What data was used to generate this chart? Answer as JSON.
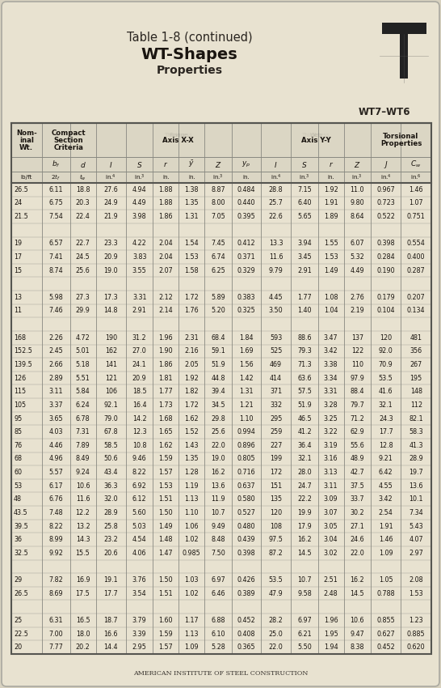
{
  "title1": "Table 1-8 (continued)",
  "title2": "WT-Shapes",
  "title3": "Properties",
  "wt_label": "WT7–WT6",
  "footer": "American Institute of Steel Construction",
  "bg_color": "#d8d2c0",
  "page_color": "#e8e2d0",
  "table_bg": "#e8e2d0",
  "header_bg": "#ddd8c5",
  "rows": [
    [
      "26.5",
      "6.11",
      "18.8",
      "27.6",
      "4.94",
      "1.88",
      "1.38",
      "8.87",
      "0.484",
      "28.8",
      "7.15",
      "1.92",
      "11.0",
      "0.967",
      "1.46"
    ],
    [
      "24",
      "6.75",
      "20.3",
      "24.9",
      "4.49",
      "1.88",
      "1.35",
      "8.00",
      "0.440",
      "25.7",
      "6.40",
      "1.91",
      "9.80",
      "0.723",
      "1.07"
    ],
    [
      "21.5",
      "7.54",
      "22.4",
      "21.9",
      "3.98",
      "1.86",
      "1.31",
      "7.05",
      "0.395",
      "22.6",
      "5.65",
      "1.89",
      "8.64",
      "0.522",
      "0.751"
    ],
    [
      "",
      "",
      "",
      "",
      "",
      "",
      "",
      "",
      "",
      "",
      "",
      "",
      "",
      "",
      ""
    ],
    [
      "19",
      "6.57",
      "22.7",
      "23.3",
      "4.22",
      "2.04",
      "1.54",
      "7.45",
      "0.412",
      "13.3",
      "3.94",
      "1.55",
      "6.07",
      "0.398",
      "0.554"
    ],
    [
      "17",
      "7.41",
      "24.5",
      "20.9",
      "3.83",
      "2.04",
      "1.53",
      "6.74",
      "0.371",
      "11.6",
      "3.45",
      "1.53",
      "5.32",
      "0.284",
      "0.400"
    ],
    [
      "15",
      "8.74",
      "25.6",
      "19.0",
      "3.55",
      "2.07",
      "1.58",
      "6.25",
      "0.329",
      "9.79",
      "2.91",
      "1.49",
      "4.49",
      "0.190",
      "0.287"
    ],
    [
      "",
      "",
      "",
      "",
      "",
      "",
      "",
      "",
      "",
      "",
      "",
      "",
      "",
      "",
      ""
    ],
    [
      "13",
      "5.98",
      "27.3",
      "17.3",
      "3.31",
      "2.12",
      "1.72",
      "5.89",
      "0.383",
      "4.45",
      "1.77",
      "1.08",
      "2.76",
      "0.179",
      "0.207"
    ],
    [
      "11",
      "7.46",
      "29.9",
      "14.8",
      "2.91",
      "2.14",
      "1.76",
      "5.20",
      "0.325",
      "3.50",
      "1.40",
      "1.04",
      "2.19",
      "0.104",
      "0.134"
    ],
    [
      "",
      "",
      "",
      "",
      "",
      "",
      "",
      "",
      "",
      "",
      "",
      "",
      "",
      "",
      ""
    ],
    [
      "168",
      "2.26",
      "4.72",
      "190",
      "31.2",
      "1.96",
      "2.31",
      "68.4",
      "1.84",
      "593",
      "88.6",
      "3.47",
      "137",
      "120",
      "481"
    ],
    [
      "152.5",
      "2.45",
      "5.01",
      "162",
      "27.0",
      "1.90",
      "2.16",
      "59.1",
      "1.69",
      "525",
      "79.3",
      "3.42",
      "122",
      "92.0",
      "356"
    ],
    [
      "139.5",
      "2.66",
      "5.18",
      "141",
      "24.1",
      "1.86",
      "2.05",
      "51.9",
      "1.56",
      "469",
      "71.3",
      "3.38",
      "110",
      "70.9",
      "267"
    ],
    [
      "126",
      "2.89",
      "5.51",
      "121",
      "20.9",
      "1.81",
      "1.92",
      "44.8",
      "1.42",
      "414",
      "63.6",
      "3.34",
      "97.9",
      "53.5",
      "195"
    ],
    [
      "115",
      "3.11",
      "5.84",
      "106",
      "18.5",
      "1.77",
      "1.82",
      "39.4",
      "1.31",
      "371",
      "57.5",
      "3.31",
      "88.4",
      "41.6",
      "148"
    ],
    [
      "105",
      "3.37",
      "6.24",
      "92.1",
      "16.4",
      "1.73",
      "1.72",
      "34.5",
      "1.21",
      "332",
      "51.9",
      "3.28",
      "79.7",
      "32.1",
      "112"
    ],
    [
      "95",
      "3.65",
      "6.78",
      "79.0",
      "14.2",
      "1.68",
      "1.62",
      "29.8",
      "1.10",
      "295",
      "46.5",
      "3.25",
      "71.2",
      "24.3",
      "82.1"
    ],
    [
      "85",
      "4.03",
      "7.31",
      "67.8",
      "12.3",
      "1.65",
      "1.52",
      "25.6",
      "0.994",
      "259",
      "41.2",
      "3.22",
      "62.9",
      "17.7",
      "58.3"
    ],
    [
      "76",
      "4.46",
      "7.89",
      "58.5",
      "10.8",
      "1.62",
      "1.43",
      "22.0",
      "0.896",
      "227",
      "36.4",
      "3.19",
      "55.6",
      "12.8",
      "41.3"
    ],
    [
      "68",
      "4.96",
      "8.49",
      "50.6",
      "9.46",
      "1.59",
      "1.35",
      "19.0",
      "0.805",
      "199",
      "32.1",
      "3.16",
      "48.9",
      "9.21",
      "28.9"
    ],
    [
      "60",
      "5.57",
      "9.24",
      "43.4",
      "8.22",
      "1.57",
      "1.28",
      "16.2",
      "0.716",
      "172",
      "28.0",
      "3.13",
      "42.7",
      "6.42",
      "19.7"
    ],
    [
      "53",
      "6.17",
      "10.6",
      "36.3",
      "6.92",
      "1.53",
      "1.19",
      "13.6",
      "0.637",
      "151",
      "24.7",
      "3.11",
      "37.5",
      "4.55",
      "13.6"
    ],
    [
      "48",
      "6.76",
      "11.6",
      "32.0",
      "6.12",
      "1.51",
      "1.13",
      "11.9",
      "0.580",
      "135",
      "22.2",
      "3.09",
      "33.7",
      "3.42",
      "10.1"
    ],
    [
      "43.5",
      "7.48",
      "12.2",
      "28.9",
      "5.60",
      "1.50",
      "1.10",
      "10.7",
      "0.527",
      "120",
      "19.9",
      "3.07",
      "30.2",
      "2.54",
      "7.34"
    ],
    [
      "39.5",
      "8.22",
      "13.2",
      "25.8",
      "5.03",
      "1.49",
      "1.06",
      "9.49",
      "0.480",
      "108",
      "17.9",
      "3.05",
      "27.1",
      "1.91",
      "5.43"
    ],
    [
      "36",
      "8.99",
      "14.3",
      "23.2",
      "4.54",
      "1.48",
      "1.02",
      "8.48",
      "0.439",
      "97.5",
      "16.2",
      "3.04",
      "24.6",
      "1.46",
      "4.07"
    ],
    [
      "32.5",
      "9.92",
      "15.5",
      "20.6",
      "4.06",
      "1.47",
      "0.985",
      "7.50",
      "0.398",
      "87.2",
      "14.5",
      "3.02",
      "22.0",
      "1.09",
      "2.97"
    ],
    [
      "",
      "",
      "",
      "",
      "",
      "",
      "",
      "",
      "",
      "",
      "",
      "",
      "",
      "",
      ""
    ],
    [
      "29",
      "7.82",
      "16.9",
      "19.1",
      "3.76",
      "1.50",
      "1.03",
      "6.97",
      "0.426",
      "53.5",
      "10.7",
      "2.51",
      "16.2",
      "1.05",
      "2.08"
    ],
    [
      "26.5",
      "8.69",
      "17.5",
      "17.7",
      "3.54",
      "1.51",
      "1.02",
      "6.46",
      "0.389",
      "47.9",
      "9.58",
      "2.48",
      "14.5",
      "0.788",
      "1.53"
    ],
    [
      "",
      "",
      "",
      "",
      "",
      "",
      "",
      "",
      "",
      "",
      "",
      "",
      "",
      "",
      ""
    ],
    [
      "25",
      "6.31",
      "16.5",
      "18.7",
      "3.79",
      "1.60",
      "1.17",
      "6.88",
      "0.452",
      "28.2",
      "6.97",
      "1.96",
      "10.6",
      "0.855",
      "1.23"
    ],
    [
      "22.5",
      "7.00",
      "18.0",
      "16.6",
      "3.39",
      "1.59",
      "1.13",
      "6.10",
      "0.408",
      "25.0",
      "6.21",
      "1.95",
      "9.47",
      "0.627",
      "0.885"
    ],
    [
      "20",
      "7.77",
      "20.2",
      "14.4",
      "2.95",
      "1.57",
      "1.09",
      "5.28",
      "0.365",
      "22.0",
      "5.50",
      "1.94",
      "8.38",
      "0.452",
      "0.620"
    ]
  ]
}
